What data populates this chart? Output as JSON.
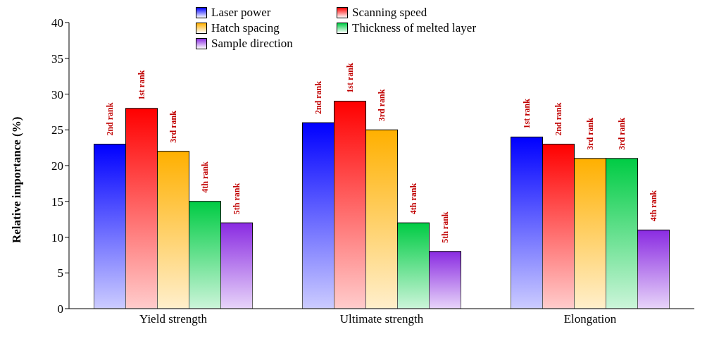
{
  "chart_data": {
    "type": "bar",
    "ylabel": "Relative importance (%)",
    "categories": [
      "Yield strength",
      "Ultimate strength",
      "Elongation"
    ],
    "series": [
      {
        "name": "Laser power",
        "color": "#0000ff",
        "values": [
          23,
          26,
          24
        ]
      },
      {
        "name": "Scanning speed",
        "color": "#ff0000",
        "values": [
          28,
          29,
          23
        ]
      },
      {
        "name": "Hatch spacing",
        "color": "#ffb000",
        "values": [
          22,
          25,
          21
        ]
      },
      {
        "name": "Thickness of melted layer",
        "color": "#00cc44",
        "values": [
          15,
          12,
          21
        ]
      },
      {
        "name": "Sample direction",
        "color": "#8a2be2",
        "values": [
          12,
          8,
          11
        ]
      }
    ],
    "annotations": [
      "2nd rank",
      "1st rank",
      "3rd  rank",
      "4th rank",
      "5th rank",
      "2nd rank",
      "1st rank",
      "3rd  rank",
      "4th rank",
      "5th rank",
      "1st rank",
      "2nd rank",
      "3rd rank",
      "3rd rank",
      "4th rank"
    ],
    "ylim": [
      0,
      40
    ],
    "yticks": [
      0,
      5,
      10,
      15,
      20,
      25,
      30,
      35,
      40
    ],
    "grid": false,
    "legend": "top"
  }
}
